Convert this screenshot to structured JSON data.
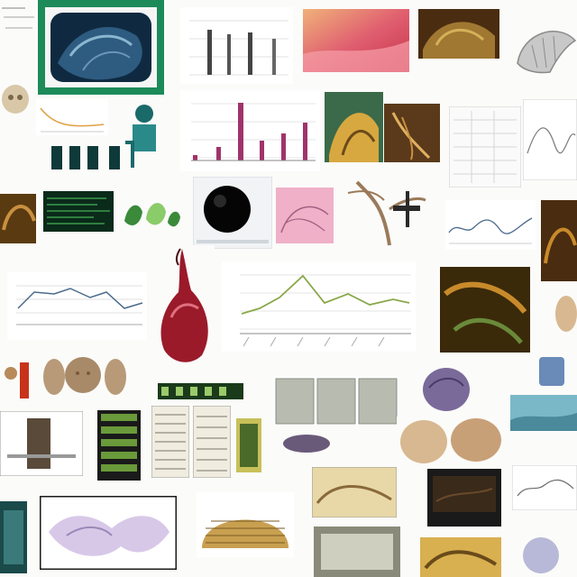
{
  "title": "",
  "tiles": [
    {
      "name": "tl-textfrag",
      "kind": "text-fragment",
      "colors": [
        "#bfbfbf"
      ]
    },
    {
      "name": "tl-green-framed-blue-sculpture",
      "kind": "photo",
      "colors": [
        "#1d8a5a",
        "#0f2a40",
        "#3b6f9a",
        "#8ab6cf"
      ]
    },
    {
      "name": "tl-gray-bar-plot",
      "kind": "chart-fragment",
      "colors": [
        "#444444",
        "#d9d9d9"
      ]
    },
    {
      "name": "tl-red-pink-gradient",
      "kind": "photo",
      "colors": [
        "#c8324a",
        "#f7a0a8",
        "#f0b27a"
      ]
    },
    {
      "name": "tl-brown-relic-photo",
      "kind": "photo",
      "colors": [
        "#4a2c10",
        "#a07832",
        "#d4b15a"
      ]
    },
    {
      "name": "tl-gray-shell-sketch",
      "kind": "illustration",
      "colors": [
        "#8a8a8a",
        "#d0d0d0"
      ]
    },
    {
      "name": "tl-magenta-bar-chart",
      "kind": "chart-fragment",
      "colors": [
        "#a0336b",
        "#d9d9d9"
      ]
    },
    {
      "name": "tl-teal-figure",
      "kind": "illustration",
      "colors": [
        "#1a6a6a",
        "#3a9a9a"
      ]
    },
    {
      "name": "tl-golden-teal-artwork",
      "kind": "photo",
      "colors": [
        "#3a6a4a",
        "#d8a840",
        "#6a4a1a"
      ]
    },
    {
      "name": "tl-dark-sphere",
      "kind": "photo",
      "colors": [
        "#050505",
        "#2a2a2a",
        "#cfd6dc"
      ]
    },
    {
      "name": "tl-pink-sketch",
      "kind": "illustration",
      "colors": [
        "#f0b0c8",
        "#a06080"
      ]
    },
    {
      "name": "tl-root-specimen",
      "kind": "illustration",
      "colors": [
        "#9a7a5a",
        "#2a2a2a"
      ]
    },
    {
      "name": "tl-green-terminal",
      "kind": "screen",
      "colors": [
        "#0a2a1a",
        "#3a9a4a"
      ]
    },
    {
      "name": "tl-green-leaves",
      "kind": "illustration",
      "colors": [
        "#3a8a3a",
        "#8acb6a"
      ]
    },
    {
      "name": "tl-red-fig-fruit",
      "kind": "photo",
      "colors": [
        "#9a1a2a",
        "#e07080",
        "#4a0a10"
      ]
    },
    {
      "name": "tl-green-line-chart",
      "kind": "chart-fragment",
      "colors": [
        "#8aa84a",
        "#cc5a3a",
        "#d9d9d9"
      ]
    },
    {
      "name": "tl-orange-specimen-photo",
      "kind": "photo",
      "colors": [
        "#3a2a0a",
        "#c88a2a",
        "#6a8a3a"
      ]
    },
    {
      "name": "tl-blue-gray-line-chart",
      "kind": "chart-fragment",
      "colors": [
        "#4a6a8a",
        "#cfcfcf"
      ]
    },
    {
      "name": "tl-carved-heads",
      "kind": "photo",
      "colors": [
        "#b89a78",
        "#7a5a3a"
      ]
    },
    {
      "name": "tl-gray-panels",
      "kind": "photo",
      "colors": [
        "#b8bcb0",
        "#8a8e84"
      ]
    },
    {
      "name": "tl-purple-ovoid",
      "kind": "photo",
      "colors": [
        "#7a6a9a",
        "#4a3a6a"
      ]
    },
    {
      "name": "tl-lavender-sculpture",
      "kind": "illustration",
      "colors": [
        "#d8c8e8",
        "#9a88b8"
      ]
    },
    {
      "name": "tl-ribbed-wooden-dome",
      "kind": "photo",
      "colors": [
        "#c8a050",
        "#7a5a20"
      ]
    },
    {
      "name": "tl-dark-screen",
      "kind": "screen",
      "colors": [
        "#1a1a1a",
        "#6a4a2a"
      ]
    }
  ]
}
